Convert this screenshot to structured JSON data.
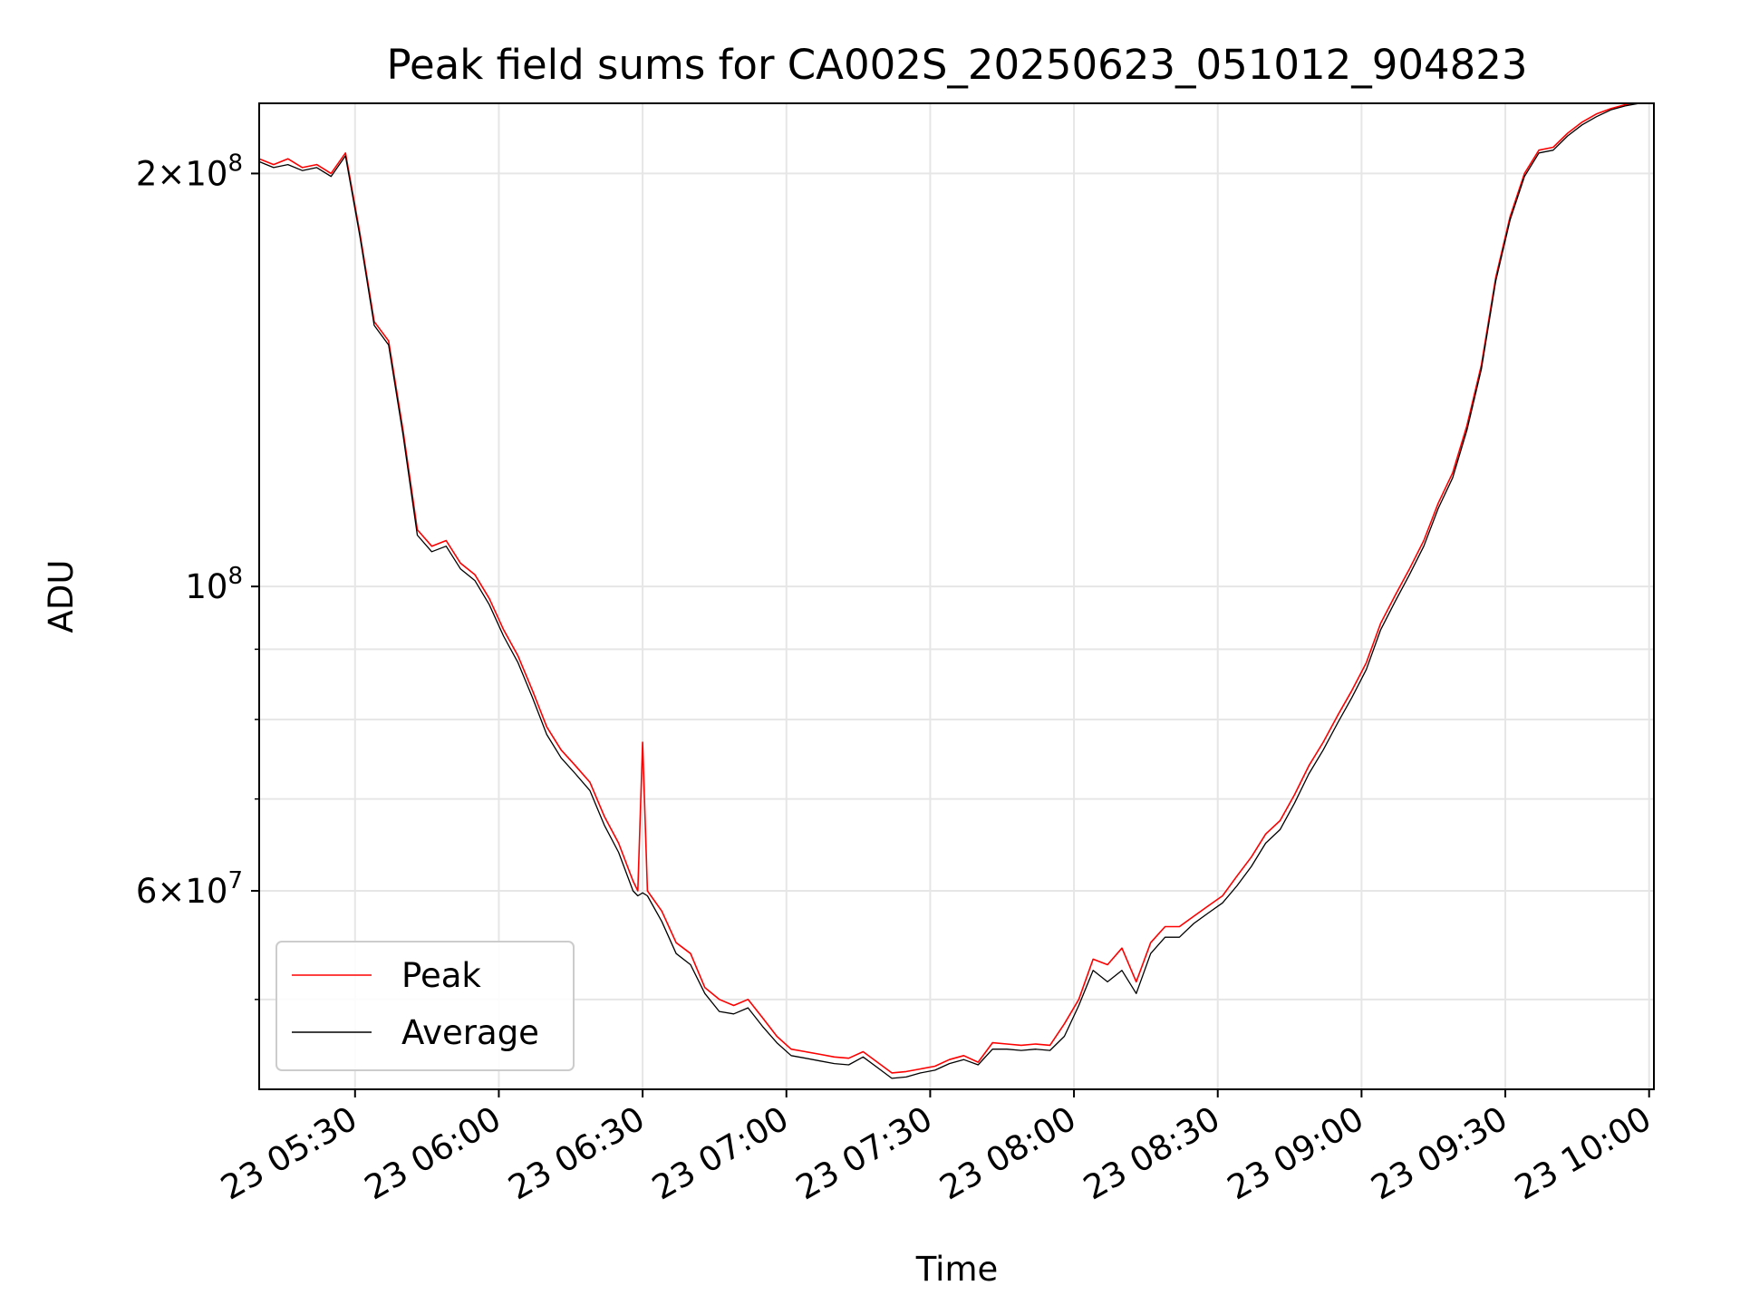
{
  "chart_data": {
    "type": "line",
    "title": "Peak field sums for CA002S_20250623_051012_904823",
    "xlabel": "Time",
    "ylabel": "ADU",
    "yscale": "log",
    "ylim": [
      43000000,
      225000000
    ],
    "xlim": [
      "23 05:10",
      "23 10:01"
    ],
    "grid": true,
    "legend_position": "lower-left",
    "x_ticks": [
      "23 05:30",
      "23 06:00",
      "23 06:30",
      "23 07:00",
      "23 07:30",
      "23 08:00",
      "23 08:30",
      "23 09:00",
      "23 09:30",
      "23 10:00"
    ],
    "y_tick_labels": [
      {
        "value": 200000000,
        "mantissa": "2",
        "exp": "8"
      },
      {
        "value": 100000000,
        "mantissa": "",
        "exp": "8"
      },
      {
        "value": 60000000,
        "mantissa": "6",
        "exp": "7"
      }
    ],
    "y_minor_ticks": [
      50000000,
      70000000,
      80000000,
      90000000
    ],
    "series": [
      {
        "name": "Peak",
        "color": "#ff0000",
        "x": [
          "23 05:10",
          "23 05:13",
          "23 05:16",
          "23 05:19",
          "23 05:22",
          "23 05:25",
          "23 05:28",
          "23 05:31",
          "23 05:34",
          "23 05:37",
          "23 05:40",
          "23 05:43",
          "23 05:46",
          "23 05:49",
          "23 05:52",
          "23 05:55",
          "23 05:58",
          "23 06:01",
          "23 06:04",
          "23 06:07",
          "23 06:10",
          "23 06:13",
          "23 06:16",
          "23 06:19",
          "23 06:22",
          "23 06:25",
          "23 06:28",
          "23 06:29",
          "23 06:30",
          "23 06:31",
          "23 06:34",
          "23 06:37",
          "23 06:40",
          "23 06:43",
          "23 06:46",
          "23 06:49",
          "23 06:52",
          "23 06:55",
          "23 06:58",
          "23 07:01",
          "23 07:04",
          "23 07:07",
          "23 07:10",
          "23 07:13",
          "23 07:16",
          "23 07:19",
          "23 07:22",
          "23 07:25",
          "23 07:28",
          "23 07:31",
          "23 07:34",
          "23 07:37",
          "23 07:40",
          "23 07:43",
          "23 07:46",
          "23 07:49",
          "23 07:52",
          "23 07:55",
          "23 07:58",
          "23 08:01",
          "23 08:04",
          "23 08:07",
          "23 08:10",
          "23 08:13",
          "23 08:16",
          "23 08:19",
          "23 08:22",
          "23 08:25",
          "23 08:28",
          "23 08:31",
          "23 08:34",
          "23 08:37",
          "23 08:40",
          "23 08:43",
          "23 08:46",
          "23 08:49",
          "23 08:52",
          "23 08:55",
          "23 08:58",
          "23 09:01",
          "23 09:04",
          "23 09:07",
          "23 09:10",
          "23 09:13",
          "23 09:16",
          "23 09:19",
          "23 09:22",
          "23 09:25",
          "23 09:28",
          "23 09:31",
          "23 09:34",
          "23 09:37",
          "23 09:40",
          "23 09:43",
          "23 09:46",
          "23 09:49",
          "23 09:52",
          "23 09:55",
          "23 09:58",
          "23 10:01"
        ],
        "values": [
          205000000,
          203000000,
          205000000,
          202000000,
          203000000,
          200000000,
          207000000,
          181000000,
          156000000,
          151000000,
          130000000,
          110000000,
          107000000,
          108000000,
          104000000,
          102000000,
          98000000,
          93000000,
          89000000,
          84000000,
          79000000,
          76000000,
          74000000,
          72000000,
          68000000,
          65000000,
          61000000,
          60000000,
          77000000,
          60000000,
          58000000,
          55000000,
          54000000,
          51000000,
          50000000,
          49500000,
          50000000,
          48500000,
          47000000,
          46000000,
          45800000,
          45600000,
          45400000,
          45300000,
          45800000,
          45000000,
          44200000,
          44300000,
          44500000,
          44700000,
          45200000,
          45500000,
          45000000,
          46500000,
          46400000,
          46300000,
          46400000,
          46300000,
          48000000,
          50000000,
          53500000,
          53000000,
          54500000,
          51500000,
          55000000,
          56500000,
          56500000,
          57500000,
          58500000,
          59500000,
          61500000,
          63500000,
          66000000,
          67500000,
          70500000,
          74000000,
          77000000,
          80500000,
          84000000,
          88000000,
          94000000,
          98500000,
          103000000,
          108000000,
          115000000,
          121000000,
          131000000,
          145000000,
          168000000,
          186000000,
          200000000,
          208000000,
          209000000,
          214000000,
          218000000,
          221000000,
          223000000,
          224500000,
          225000000,
          225000000
        ]
      },
      {
        "name": "Average",
        "color": "#000000",
        "x": [
          "23 05:10",
          "23 05:13",
          "23 05:16",
          "23 05:19",
          "23 05:22",
          "23 05:25",
          "23 05:28",
          "23 05:31",
          "23 05:34",
          "23 05:37",
          "23 05:40",
          "23 05:43",
          "23 05:46",
          "23 05:49",
          "23 05:52",
          "23 05:55",
          "23 05:58",
          "23 06:01",
          "23 06:04",
          "23 06:07",
          "23 06:10",
          "23 06:13",
          "23 06:16",
          "23 06:19",
          "23 06:22",
          "23 06:25",
          "23 06:28",
          "23 06:29",
          "23 06:30",
          "23 06:31",
          "23 06:34",
          "23 06:37",
          "23 06:40",
          "23 06:43",
          "23 06:46",
          "23 06:49",
          "23 06:52",
          "23 06:55",
          "23 06:58",
          "23 07:01",
          "23 07:04",
          "23 07:07",
          "23 07:10",
          "23 07:13",
          "23 07:16",
          "23 07:19",
          "23 07:22",
          "23 07:25",
          "23 07:28",
          "23 07:31",
          "23 07:34",
          "23 07:37",
          "23 07:40",
          "23 07:43",
          "23 07:46",
          "23 07:49",
          "23 07:52",
          "23 07:55",
          "23 07:58",
          "23 08:01",
          "23 08:04",
          "23 08:07",
          "23 08:10",
          "23 08:13",
          "23 08:16",
          "23 08:19",
          "23 08:22",
          "23 08:25",
          "23 08:28",
          "23 08:31",
          "23 08:34",
          "23 08:37",
          "23 08:40",
          "23 08:43",
          "23 08:46",
          "23 08:49",
          "23 08:52",
          "23 08:55",
          "23 08:58",
          "23 09:01",
          "23 09:04",
          "23 09:07",
          "23 09:10",
          "23 09:13",
          "23 09:16",
          "23 09:19",
          "23 09:22",
          "23 09:25",
          "23 09:28",
          "23 09:31",
          "23 09:34",
          "23 09:37",
          "23 09:40",
          "23 09:43",
          "23 09:46",
          "23 09:49",
          "23 09:52",
          "23 09:55",
          "23 09:58",
          "23 10:01"
        ],
        "values": [
          204000000,
          202000000,
          203000000,
          201000000,
          202000000,
          199000000,
          206000000,
          180000000,
          155000000,
          150000000,
          129000000,
          109000000,
          106000000,
          107000000,
          103000000,
          101000000,
          97000000,
          92000000,
          88000000,
          83000000,
          78000000,
          75000000,
          73000000,
          71000000,
          67000000,
          64000000,
          60000000,
          59500000,
          59800000,
          59500000,
          57000000,
          54000000,
          53000000,
          50500000,
          49000000,
          48800000,
          49300000,
          47800000,
          46500000,
          45500000,
          45300000,
          45100000,
          44900000,
          44800000,
          45400000,
          44600000,
          43800000,
          43900000,
          44200000,
          44400000,
          44900000,
          45200000,
          44800000,
          46000000,
          46000000,
          45900000,
          46000000,
          45900000,
          47000000,
          49500000,
          52500000,
          51500000,
          52500000,
          50500000,
          54000000,
          55500000,
          55500000,
          56800000,
          57800000,
          58800000,
          60500000,
          62500000,
          65000000,
          66500000,
          69500000,
          73000000,
          76000000,
          79500000,
          83000000,
          87000000,
          93000000,
          97500000,
          102000000,
          107000000,
          114000000,
          120000000,
          130000000,
          144000000,
          167000000,
          185000000,
          199000000,
          207000000,
          208000000,
          213000000,
          217000000,
          220000000,
          222500000,
          224000000,
          225000000,
          225000000
        ]
      }
    ]
  }
}
